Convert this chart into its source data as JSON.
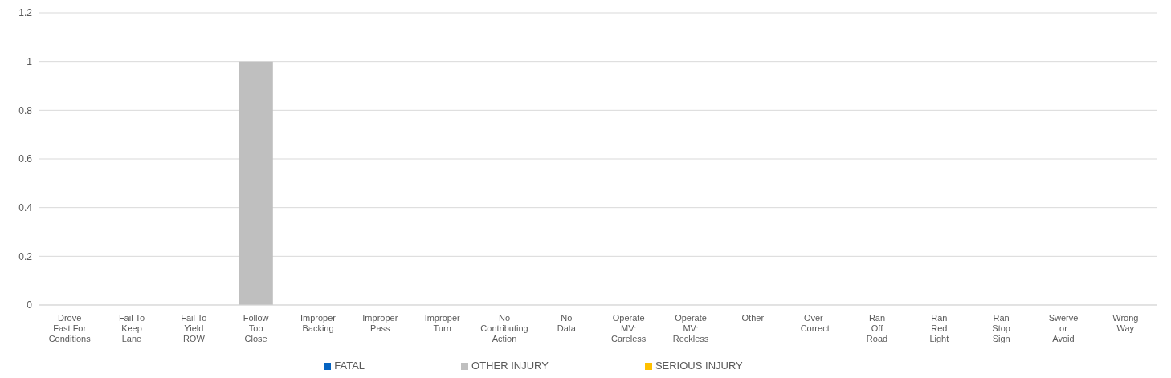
{
  "chart_data": {
    "type": "bar",
    "stacked": true,
    "categories": [
      "Drove\nFast For\nConditions",
      "Fail To\nKeep\nLane",
      "Fail To\nYield\nROW",
      "Follow\nToo\nClose",
      "Improper\nBacking",
      "Improper\nPass",
      "Improper\nTurn",
      "No\nContributing\nAction",
      "No\nData",
      "Operate\nMV:\nCareless",
      "Operate\nMV:\nReckless",
      "Other",
      "Over-\nCorrect",
      "Ran\nOff\nRoad",
      "Ran\nRed\nLight",
      "Ran\nStop\nSign",
      "Swerve\nor\nAvoid",
      "Wrong\nWay"
    ],
    "series": [
      {
        "name": "SERIOUS INJURY",
        "color": "#ffc000",
        "values": [
          0,
          0,
          0,
          0,
          0,
          0,
          0,
          0,
          0,
          0,
          0,
          0,
          0,
          0,
          0,
          0,
          0,
          0
        ]
      },
      {
        "name": "FATAL",
        "color": "#0563c1",
        "values": [
          0,
          0,
          0,
          0,
          0,
          0,
          0,
          0,
          0,
          0,
          0,
          0,
          0,
          0,
          0,
          0,
          0,
          0
        ]
      },
      {
        "name": "OTHER INJURY",
        "color": "#bfbfbf",
        "values": [
          0,
          0,
          0,
          1,
          0,
          0,
          0,
          0,
          0,
          0,
          0,
          0,
          0,
          0,
          0,
          0,
          0,
          0
        ]
      }
    ],
    "ylim": [
      0,
      1.2
    ],
    "yticks": [
      0,
      0.2,
      0.4,
      0.6,
      0.8,
      1,
      1.2
    ],
    "grid": "y",
    "legend": "bottom"
  }
}
